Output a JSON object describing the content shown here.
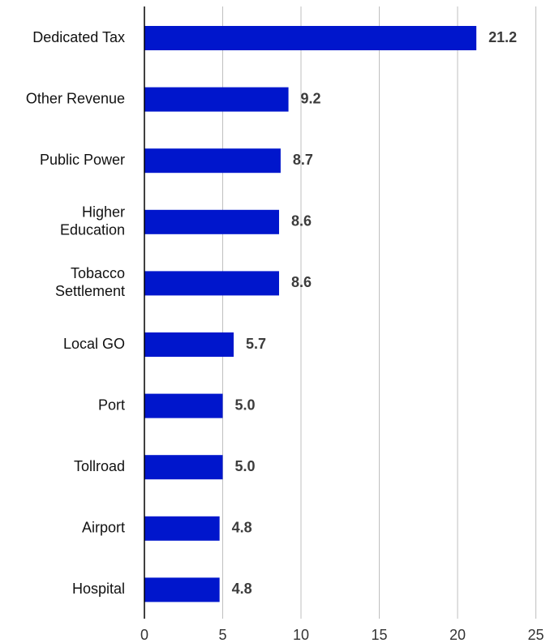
{
  "chart_data": {
    "type": "bar",
    "orientation": "horizontal",
    "title": "",
    "xlabel": "",
    "ylabel": "",
    "categories": [
      [
        "Dedicated Tax"
      ],
      [
        "Other Revenue"
      ],
      [
        "Public Power"
      ],
      [
        "Higher",
        "Education"
      ],
      [
        "Tobacco",
        "Settlement"
      ],
      [
        "Local GO"
      ],
      [
        "Port"
      ],
      [
        "Tollroad"
      ],
      [
        "Airport"
      ],
      [
        "Hospital"
      ]
    ],
    "values": [
      21.2,
      9.2,
      8.7,
      8.6,
      8.6,
      5.7,
      5.0,
      5.0,
      4.8,
      4.8
    ],
    "value_labels": [
      "21.2",
      "9.2",
      "8.7",
      "8.6",
      "8.6",
      "5.7",
      "5.0",
      "5.0",
      "4.8",
      "4.8"
    ],
    "xlim": [
      0,
      25
    ],
    "xticks": [
      0,
      5,
      10,
      15,
      20,
      25
    ],
    "xtick_labels": [
      "0",
      "5",
      "10",
      "15",
      "20",
      "25"
    ],
    "grid": "vertical",
    "legend": "none",
    "bar_color": "#0016CC",
    "grid_color": "#BFBFBF",
    "axis_color": "#000000"
  }
}
